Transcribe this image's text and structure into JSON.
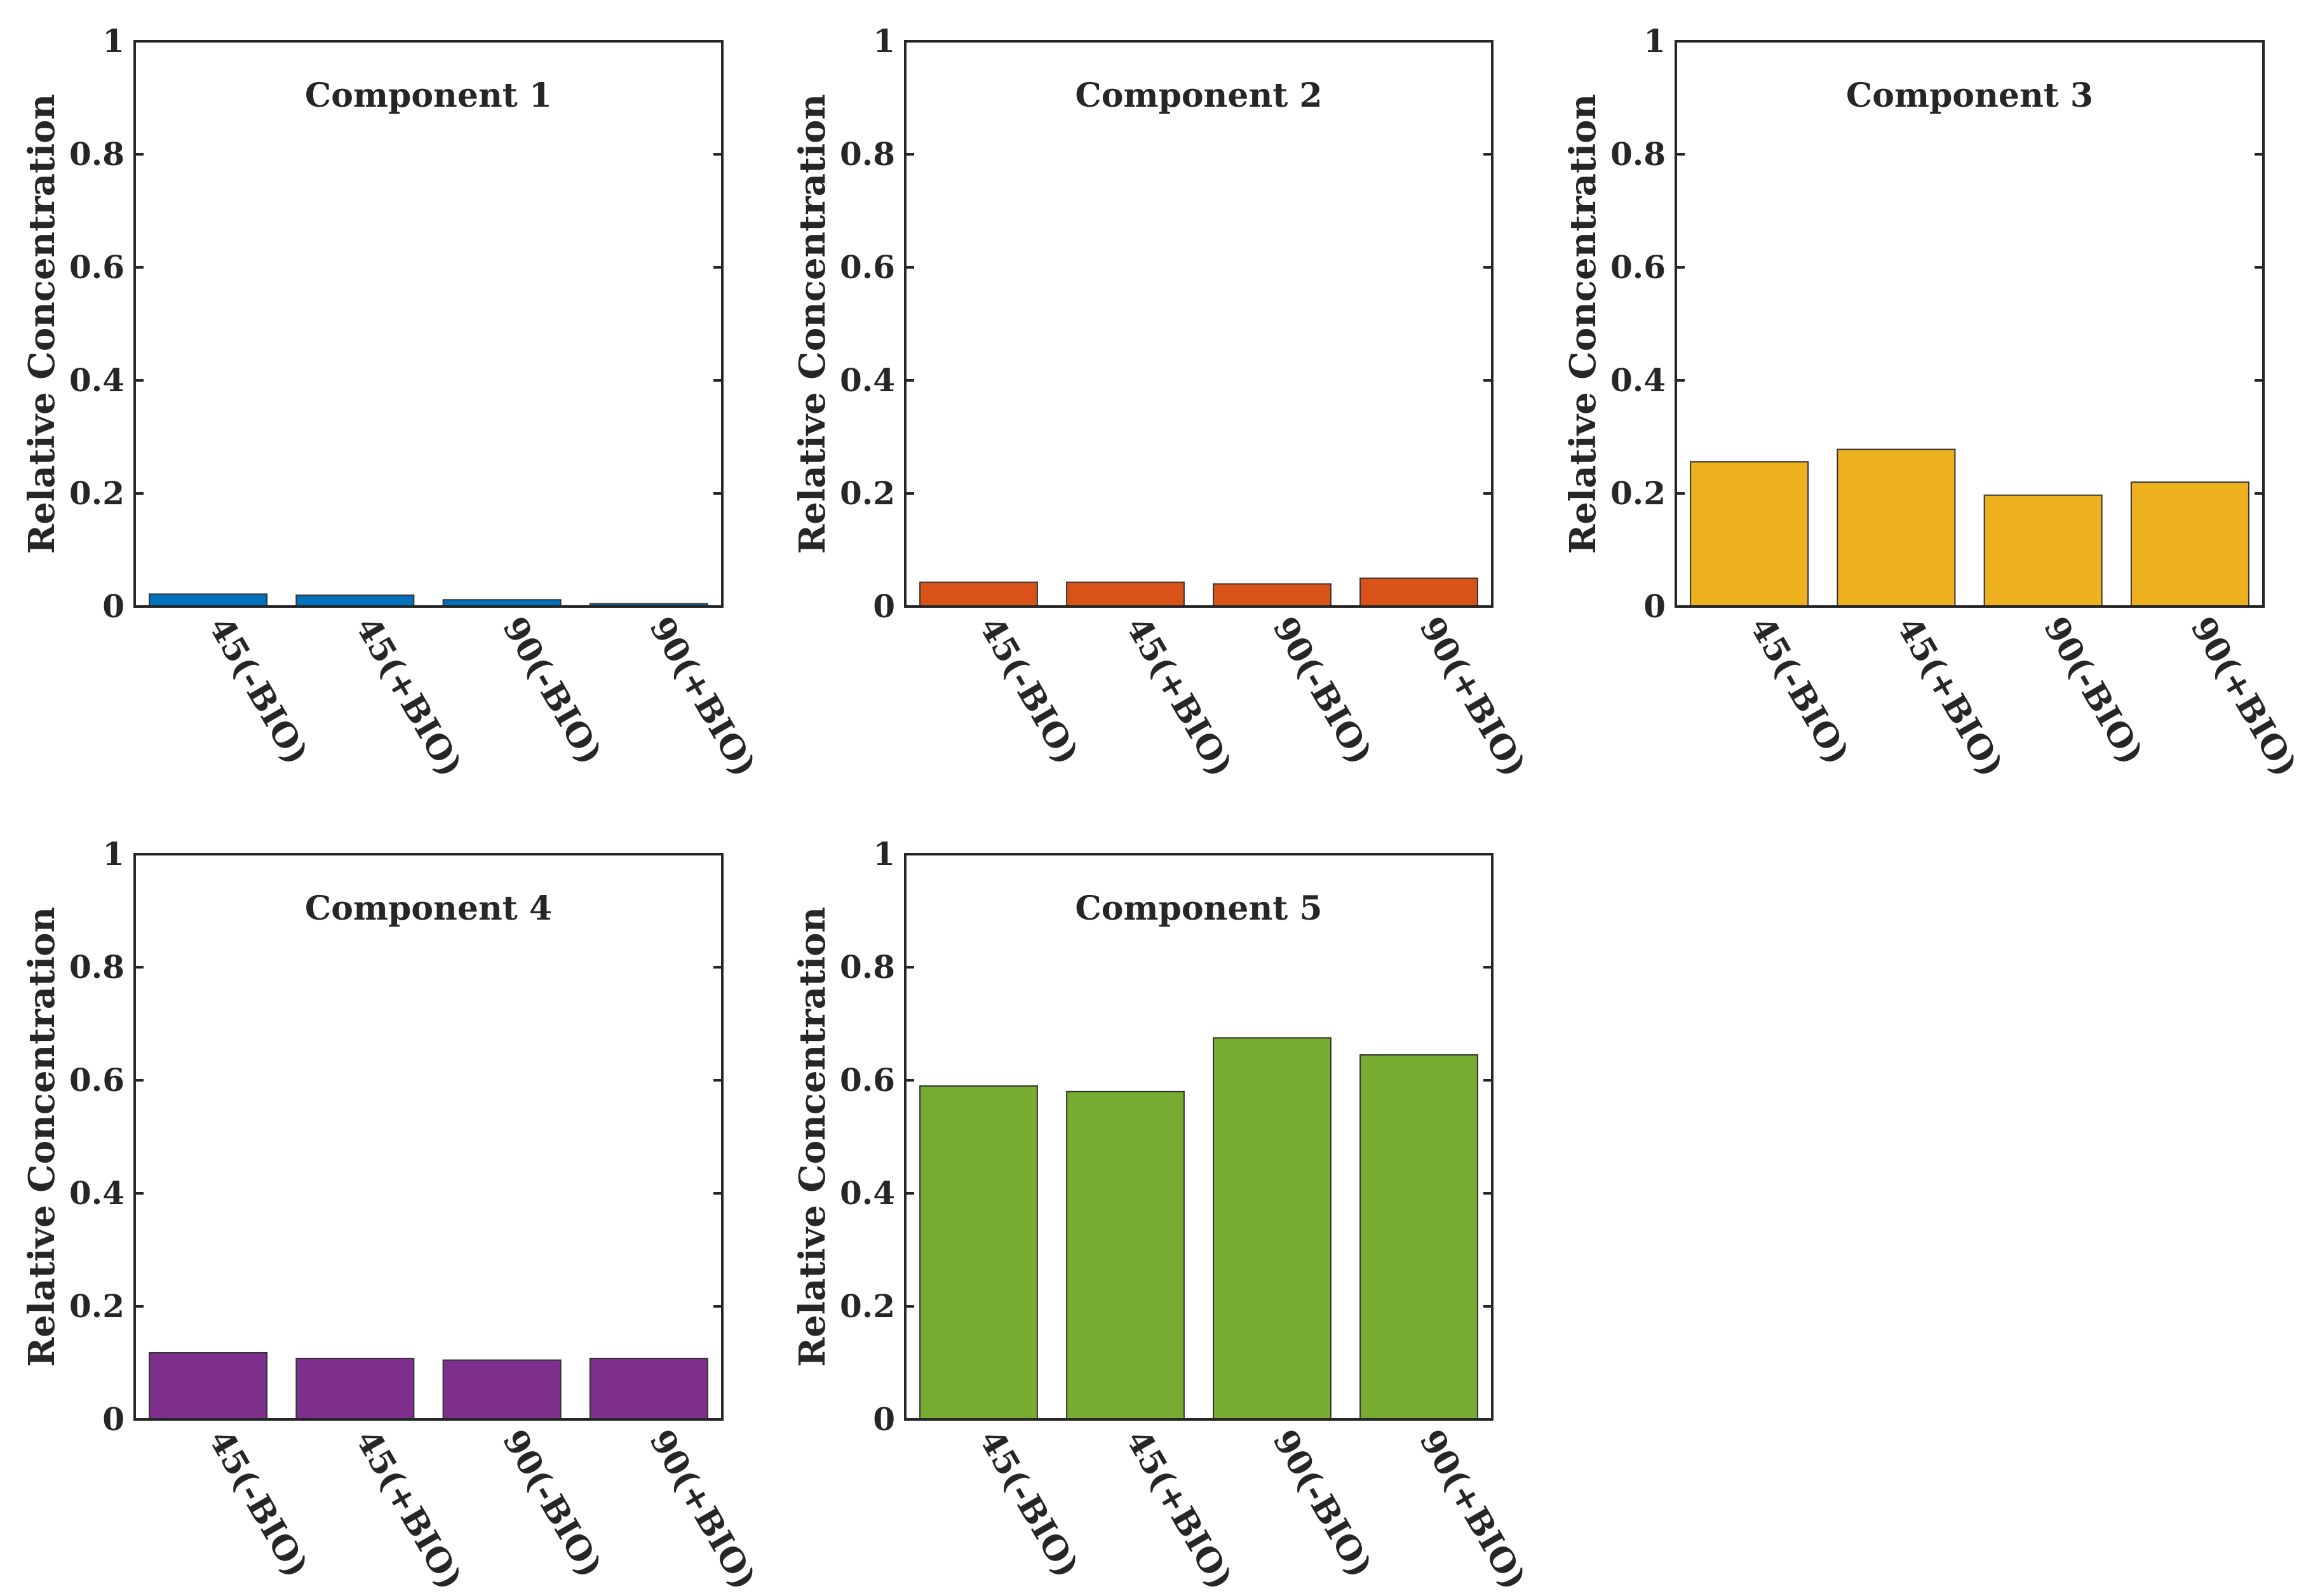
{
  "chart_data": [
    {
      "type": "bar",
      "title": "Component 1",
      "categories": [
        "45(-BIO)",
        "45(+BIO)",
        "90(-BIO)",
        "90(+BIO)"
      ],
      "values": [
        0.022,
        0.02,
        0.012,
        0.005
      ],
      "ylabel": "Relative Concentration",
      "xlabel": "",
      "ylim": [
        0,
        1
      ],
      "yticks": [
        0,
        0.2,
        0.4,
        0.6,
        0.8,
        1
      ],
      "ytick_labels": [
        "0",
        "0.2",
        "0.4",
        "0.6",
        "0.8",
        "1"
      ],
      "color": "#0072BD",
      "grid": false
    },
    {
      "type": "bar",
      "title": "Component 2",
      "categories": [
        "45(-BIO)",
        "45(+BIO)",
        "90(-BIO)",
        "90(+BIO)"
      ],
      "values": [
        0.043,
        0.043,
        0.04,
        0.05
      ],
      "ylabel": "Relative Concentration",
      "xlabel": "",
      "ylim": [
        0,
        1
      ],
      "yticks": [
        0,
        0.2,
        0.4,
        0.6,
        0.8,
        1
      ],
      "ytick_labels": [
        "0",
        "0.2",
        "0.4",
        "0.6",
        "0.8",
        "1"
      ],
      "color": "#D95319",
      "grid": false
    },
    {
      "type": "bar",
      "title": "Component 3",
      "categories": [
        "45(-BIO)",
        "45(+BIO)",
        "90(-BIO)",
        "90(+BIO)"
      ],
      "values": [
        0.256,
        0.278,
        0.197,
        0.22
      ],
      "ylabel": "Relative Concentration",
      "xlabel": "",
      "ylim": [
        0,
        1
      ],
      "yticks": [
        0,
        0.2,
        0.4,
        0.6,
        0.8,
        1
      ],
      "ytick_labels": [
        "0",
        "0.2",
        "0.4",
        "0.6",
        "0.8",
        "1"
      ],
      "color": "#EDB120",
      "grid": false
    },
    {
      "type": "bar",
      "title": "Component 4",
      "categories": [
        "45(-BIO)",
        "45(+BIO)",
        "90(-BIO)",
        "90(+BIO)"
      ],
      "values": [
        0.118,
        0.108,
        0.105,
        0.108
      ],
      "ylabel": "Relative Concentration",
      "xlabel": "",
      "ylim": [
        0,
        1
      ],
      "yticks": [
        0,
        0.2,
        0.4,
        0.6,
        0.8,
        1
      ],
      "ytick_labels": [
        "0",
        "0.2",
        "0.4",
        "0.6",
        "0.8",
        "1"
      ],
      "color": "#7E2F8E",
      "grid": false
    },
    {
      "type": "bar",
      "title": "Component 5",
      "categories": [
        "45(-BIO)",
        "45(+BIO)",
        "90(-BIO)",
        "90(+BIO)"
      ],
      "values": [
        0.59,
        0.58,
        0.675,
        0.645
      ],
      "ylabel": "Relative Concentration",
      "xlabel": "",
      "ylim": [
        0,
        1
      ],
      "yticks": [
        0,
        0.2,
        0.4,
        0.6,
        0.8,
        1
      ],
      "ytick_labels": [
        "0",
        "0.2",
        "0.4",
        "0.6",
        "0.8",
        "1"
      ],
      "color": "#77AC30",
      "grid": false
    }
  ]
}
